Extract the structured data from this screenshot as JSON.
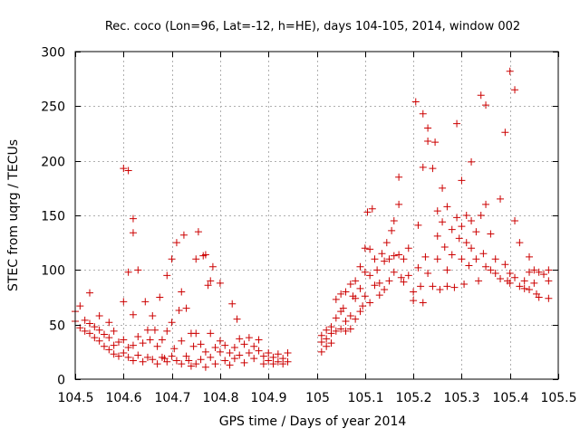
{
  "chart_data": {
    "type": "scatter",
    "title": "Rec. coco (Lon=96, Lat=-12, h=HE), days 104-105, 2014, window 002",
    "xlabel": "GPS time / Days of year 2014",
    "ylabel": "STEC from uqrg / TECUs",
    "xlim": [
      104.5,
      105.5
    ],
    "ylim": [
      0,
      300
    ],
    "xticks": [
      "104.5",
      "104.6",
      "104.7",
      "104.8",
      "104.9",
      "105",
      "105.1",
      "105.2",
      "105.3",
      "105.4",
      "105.5"
    ],
    "xtick_values": [
      104.5,
      104.6,
      104.7,
      104.8,
      104.9,
      105.0,
      105.1,
      105.2,
      105.3,
      105.4,
      105.5
    ],
    "yticks": [
      "0",
      "50",
      "100",
      "150",
      "200",
      "250",
      "300"
    ],
    "ytick_values": [
      0,
      50,
      100,
      150,
      200,
      250,
      300
    ],
    "grid": true,
    "marker": "+",
    "color": "#cc0000",
    "series": [
      {
        "name": "STEC",
        "points": [
          [
            104.5,
            62
          ],
          [
            104.5,
            53
          ],
          [
            104.51,
            67
          ],
          [
            104.51,
            47
          ],
          [
            104.52,
            54
          ],
          [
            104.52,
            44
          ],
          [
            104.53,
            79
          ],
          [
            104.53,
            51
          ],
          [
            104.53,
            42
          ],
          [
            104.54,
            48
          ],
          [
            104.54,
            38
          ],
          [
            104.55,
            58
          ],
          [
            104.55,
            45
          ],
          [
            104.55,
            35
          ],
          [
            104.56,
            41
          ],
          [
            104.56,
            30
          ],
          [
            104.57,
            52
          ],
          [
            104.57,
            38
          ],
          [
            104.57,
            27
          ],
          [
            104.58,
            44
          ],
          [
            104.58,
            31
          ],
          [
            104.58,
            23
          ],
          [
            104.59,
            34
          ],
          [
            104.59,
            21
          ],
          [
            104.6,
            193
          ],
          [
            104.6,
            71
          ],
          [
            104.6,
            36
          ],
          [
            104.6,
            24
          ],
          [
            104.61,
            191
          ],
          [
            104.61,
            98
          ],
          [
            104.61,
            29
          ],
          [
            104.61,
            20
          ],
          [
            104.62,
            147
          ],
          [
            104.62,
            134
          ],
          [
            104.62,
            59
          ],
          [
            104.62,
            31
          ],
          [
            104.62,
            17
          ],
          [
            104.63,
            100
          ],
          [
            104.63,
            39
          ],
          [
            104.63,
            22
          ],
          [
            104.64,
            33
          ],
          [
            104.64,
            16
          ],
          [
            104.645,
            71
          ],
          [
            104.65,
            45
          ],
          [
            104.65,
            20
          ],
          [
            104.655,
            36
          ],
          [
            104.66,
            58
          ],
          [
            104.66,
            18
          ],
          [
            104.665,
            45
          ],
          [
            104.67,
            30
          ],
          [
            104.67,
            14
          ],
          [
            104.675,
            75
          ],
          [
            104.68,
            20
          ],
          [
            104.68,
            36
          ],
          [
            104.685,
            19
          ],
          [
            104.69,
            95
          ],
          [
            104.69,
            44
          ],
          [
            104.69,
            16
          ],
          [
            104.7,
            110
          ],
          [
            104.7,
            52
          ],
          [
            104.7,
            21
          ],
          [
            104.705,
            28
          ],
          [
            104.71,
            125
          ],
          [
            104.71,
            17
          ],
          [
            104.715,
            63
          ],
          [
            104.72,
            80
          ],
          [
            104.72,
            35
          ],
          [
            104.72,
            14
          ],
          [
            104.725,
            132
          ],
          [
            104.73,
            65
          ],
          [
            104.73,
            21
          ],
          [
            104.735,
            17
          ],
          [
            104.74,
            42
          ],
          [
            104.74,
            12
          ],
          [
            104.745,
            30
          ],
          [
            104.75,
            110
          ],
          [
            104.75,
            42
          ],
          [
            104.75,
            14
          ],
          [
            104.755,
            135
          ],
          [
            104.76,
            32
          ],
          [
            104.76,
            18
          ],
          [
            104.765,
            113
          ],
          [
            104.77,
            114
          ],
          [
            104.77,
            25
          ],
          [
            104.77,
            11
          ],
          [
            104.775,
            86
          ],
          [
            104.78,
            90
          ],
          [
            104.78,
            42
          ],
          [
            104.78,
            20
          ],
          [
            104.785,
            103
          ],
          [
            104.79,
            29
          ],
          [
            104.79,
            14
          ],
          [
            104.8,
            88
          ],
          [
            104.8,
            35
          ],
          [
            104.8,
            25
          ],
          [
            104.81,
            31
          ],
          [
            104.81,
            17
          ],
          [
            104.82,
            24
          ],
          [
            104.82,
            13
          ],
          [
            104.825,
            69
          ],
          [
            104.83,
            29
          ],
          [
            104.83,
            19
          ],
          [
            104.835,
            55
          ],
          [
            104.84,
            37
          ],
          [
            104.84,
            22
          ],
          [
            104.85,
            32
          ],
          [
            104.85,
            15
          ],
          [
            104.86,
            38
          ],
          [
            104.86,
            24
          ],
          [
            104.87,
            19
          ],
          [
            104.87,
            30
          ],
          [
            104.88,
            36
          ],
          [
            104.88,
            26
          ],
          [
            104.89,
            21
          ],
          [
            104.89,
            14
          ],
          [
            104.9,
            24
          ],
          [
            104.9,
            17
          ],
          [
            104.91,
            20
          ],
          [
            104.91,
            14
          ],
          [
            104.92,
            23
          ],
          [
            104.92,
            16
          ],
          [
            104.93,
            19
          ],
          [
            104.93,
            14
          ],
          [
            104.94,
            24
          ],
          [
            104.94,
            16
          ],
          [
            105.01,
            40
          ],
          [
            105.01,
            34
          ],
          [
            105.01,
            25
          ],
          [
            105.02,
            45
          ],
          [
            105.02,
            37
          ],
          [
            105.02,
            30
          ],
          [
            105.03,
            48
          ],
          [
            105.03,
            42
          ],
          [
            105.03,
            33
          ],
          [
            105.04,
            73
          ],
          [
            105.04,
            56
          ],
          [
            105.04,
            44
          ],
          [
            105.05,
            78
          ],
          [
            105.05,
            62
          ],
          [
            105.05,
            46
          ],
          [
            105.055,
            65
          ],
          [
            105.06,
            80
          ],
          [
            105.06,
            53
          ],
          [
            105.06,
            44
          ],
          [
            105.07,
            87
          ],
          [
            105.07,
            58
          ],
          [
            105.07,
            46
          ],
          [
            105.075,
            76
          ],
          [
            105.08,
            90
          ],
          [
            105.08,
            74
          ],
          [
            105.08,
            55
          ],
          [
            105.09,
            103
          ],
          [
            105.09,
            83
          ],
          [
            105.09,
            62
          ],
          [
            105.095,
            67
          ],
          [
            105.1,
            120
          ],
          [
            105.1,
            98
          ],
          [
            105.1,
            76
          ],
          [
            105.105,
            153
          ],
          [
            105.11,
            119
          ],
          [
            105.11,
            95
          ],
          [
            105.11,
            70
          ],
          [
            105.115,
            156
          ],
          [
            105.12,
            110
          ],
          [
            105.12,
            86
          ],
          [
            105.125,
            100
          ],
          [
            105.13,
            88
          ],
          [
            105.13,
            77
          ],
          [
            105.135,
            115
          ],
          [
            105.14,
            108
          ],
          [
            105.14,
            82
          ],
          [
            105.145,
            125
          ],
          [
            105.15,
            110
          ],
          [
            105.15,
            90
          ],
          [
            105.155,
            136
          ],
          [
            105.16,
            145
          ],
          [
            105.16,
            113
          ],
          [
            105.16,
            98
          ],
          [
            105.17,
            185
          ],
          [
            105.17,
            160
          ],
          [
            105.17,
            114
          ],
          [
            105.175,
            93
          ],
          [
            105.18,
            110
          ],
          [
            105.18,
            89
          ],
          [
            105.19,
            120
          ],
          [
            105.19,
            95
          ],
          [
            105.2,
            80
          ],
          [
            105.2,
            72
          ],
          [
            105.205,
            254
          ],
          [
            105.21,
            141
          ],
          [
            105.21,
            102
          ],
          [
            105.215,
            85
          ],
          [
            105.22,
            243
          ],
          [
            105.22,
            194
          ],
          [
            105.22,
            70
          ],
          [
            105.225,
            112
          ],
          [
            105.23,
            230
          ],
          [
            105.23,
            218
          ],
          [
            105.23,
            97
          ],
          [
            105.24,
            193
          ],
          [
            105.24,
            85
          ],
          [
            105.245,
            217
          ],
          [
            105.25,
            154
          ],
          [
            105.25,
            131
          ],
          [
            105.25,
            110
          ],
          [
            105.255,
            82
          ],
          [
            105.26,
            175
          ],
          [
            105.26,
            144
          ],
          [
            105.265,
            121
          ],
          [
            105.27,
            158
          ],
          [
            105.27,
            100
          ],
          [
            105.27,
            85
          ],
          [
            105.28,
            137
          ],
          [
            105.28,
            114
          ],
          [
            105.285,
            84
          ],
          [
            105.29,
            234
          ],
          [
            105.29,
            148
          ],
          [
            105.295,
            129
          ],
          [
            105.3,
            182
          ],
          [
            105.3,
            140
          ],
          [
            105.3,
            110
          ],
          [
            105.305,
            87
          ],
          [
            105.31,
            150
          ],
          [
            105.31,
            125
          ],
          [
            105.315,
            104
          ],
          [
            105.32,
            199
          ],
          [
            105.32,
            145
          ],
          [
            105.32,
            120
          ],
          [
            105.33,
            135
          ],
          [
            105.33,
            110
          ],
          [
            105.335,
            90
          ],
          [
            105.34,
            260
          ],
          [
            105.34,
            150
          ],
          [
            105.345,
            115
          ],
          [
            105.35,
            251
          ],
          [
            105.35,
            160
          ],
          [
            105.35,
            103
          ],
          [
            105.36,
            133
          ],
          [
            105.36,
            100
          ],
          [
            105.37,
            110
          ],
          [
            105.37,
            97
          ],
          [
            105.38,
            165
          ],
          [
            105.38,
            92
          ],
          [
            105.39,
            226
          ],
          [
            105.39,
            105
          ],
          [
            105.395,
            90
          ],
          [
            105.4,
            282
          ],
          [
            105.4,
            97
          ],
          [
            105.4,
            88
          ],
          [
            105.41,
            265
          ],
          [
            105.41,
            145
          ],
          [
            105.41,
            93
          ],
          [
            105.42,
            125
          ],
          [
            105.42,
            85
          ],
          [
            105.43,
            90
          ],
          [
            105.43,
            83
          ],
          [
            105.44,
            112
          ],
          [
            105.44,
            98
          ],
          [
            105.44,
            82
          ],
          [
            105.45,
            100
          ],
          [
            105.45,
            88
          ],
          [
            105.455,
            78
          ],
          [
            105.46,
            98
          ],
          [
            105.46,
            75
          ],
          [
            105.47,
            96
          ],
          [
            105.48,
            100
          ],
          [
            105.48,
            90
          ],
          [
            105.48,
            74
          ]
        ]
      }
    ]
  }
}
